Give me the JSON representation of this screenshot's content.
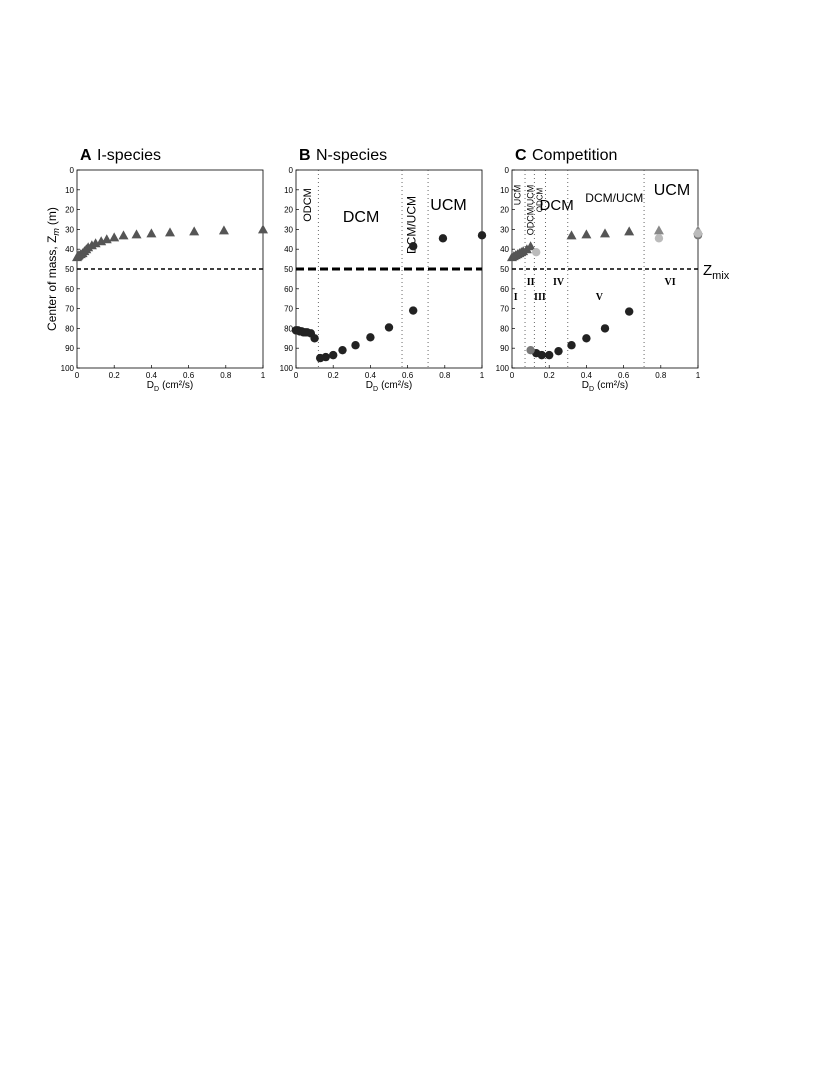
{
  "chart_data": [
    {
      "type": "scatter",
      "panel": "A",
      "title": "I-species",
      "ylabel": "Center of mass, Z",
      "ylabel_sub": "m",
      "ylabel_unit": "(m)",
      "xlabel": "D",
      "xlabel_sub": "D",
      "xlabel_unit": "(cm²/s)",
      "xlim": [
        0,
        1
      ],
      "xticks": [
        0,
        0.2,
        0.4,
        0.6,
        0.8,
        1
      ],
      "ylim": [
        100,
        0
      ],
      "yticks": [
        0,
        10,
        20,
        30,
        40,
        50,
        60,
        70,
        80,
        90,
        100
      ],
      "y_inverted": true,
      "hline": 50,
      "hline_bold": false,
      "vlines": [],
      "series": [
        {
          "marker": "triangle",
          "color": "#555555",
          "x": [
            0,
            0.005,
            0.01,
            0.02,
            0.03,
            0.04,
            0.05,
            0.06,
            0.08,
            0.1,
            0.13,
            0.16,
            0.2,
            0.25,
            0.32,
            0.4,
            0.5,
            0.63,
            0.79,
            1
          ],
          "values": [
            44,
            43.5,
            43,
            42.5,
            42,
            41,
            40,
            39,
            38,
            37,
            36,
            35,
            34,
            33,
            32.5,
            32,
            31.5,
            31,
            30.5,
            30
          ]
        }
      ],
      "annotations": []
    },
    {
      "type": "scatter",
      "panel": "B",
      "title": "N-species",
      "xlabel": "D",
      "xlabel_sub": "D",
      "xlabel_unit": "(cm²/s)",
      "xlim": [
        0,
        1
      ],
      "xticks": [
        0,
        0.2,
        0.4,
        0.6,
        0.8,
        1
      ],
      "ylim": [
        100,
        0
      ],
      "yticks": [
        0,
        10,
        20,
        30,
        40,
        50,
        60,
        70,
        80,
        90,
        100
      ],
      "y_inverted": true,
      "hline": 50,
      "hline_bold": true,
      "vlines": [
        0.12,
        0.57,
        0.71
      ],
      "series": [
        {
          "marker": "circle",
          "color": "#222222",
          "x": [
            0,
            0.01,
            0.02,
            0.03,
            0.04,
            0.05,
            0.06,
            0.08,
            0.1,
            0.13,
            0.16,
            0.2,
            0.25,
            0.32,
            0.4,
            0.5,
            0.63,
            0.63,
            0.79,
            1
          ],
          "values": [
            81,
            81,
            81.5,
            81.5,
            82,
            82,
            82,
            82.5,
            85,
            95,
            94.5,
            93.5,
            91,
            88.5,
            84.5,
            79.5,
            71,
            38.5,
            34.5,
            33
          ]
        }
      ],
      "annotations": [
        "ODCM",
        "DCM",
        "DCM/UCM",
        "UCM"
      ]
    },
    {
      "type": "scatter",
      "panel": "C",
      "title": "Competition",
      "xlabel": "D",
      "xlabel_sub": "D",
      "xlabel_unit": "(cm²/s)",
      "xlim": [
        0,
        1
      ],
      "xticks": [
        0,
        0.2,
        0.4,
        0.6,
        0.8,
        1
      ],
      "ylim": [
        100,
        0
      ],
      "yticks": [
        0,
        10,
        20,
        30,
        40,
        50,
        60,
        70,
        80,
        90,
        100
      ],
      "y_inverted": true,
      "hline": 50,
      "hline_bold": false,
      "vlines": [
        0.07,
        0.12,
        0.18,
        0.3,
        0.71
      ],
      "hline_label": "Z",
      "hline_label_sub": "mix",
      "series": [
        {
          "marker": "triangle",
          "color": "#555555",
          "x": [
            0,
            0.01,
            0.02,
            0.03,
            0.04,
            0.05,
            0.06,
            0.08,
            0.1,
            0.32,
            0.4,
            0.5,
            0.63
          ],
          "values": [
            44,
            43.5,
            43,
            42.5,
            42,
            41.5,
            41,
            40,
            38.5,
            33,
            32.5,
            32,
            31
          ]
        },
        {
          "marker": "triangle",
          "color": "#888888",
          "x": [
            0.79,
            1
          ],
          "values": [
            30.5,
            30.5
          ]
        },
        {
          "marker": "circle",
          "color": "#222222",
          "x": [
            0.13,
            0.16,
            0.2,
            0.25,
            0.32,
            0.4,
            0.5,
            0.63
          ],
          "values": [
            92.5,
            93.5,
            93.5,
            91.5,
            88.5,
            85,
            80,
            71.5
          ]
        },
        {
          "marker": "circle",
          "color": "#777777",
          "x": [
            0.1,
            1
          ],
          "values": [
            91,
            33
          ]
        },
        {
          "marker": "circle",
          "color": "#bbbbbb",
          "x": [
            0.13,
            0.79,
            1
          ],
          "values": [
            41.5,
            34.5,
            32
          ]
        }
      ],
      "annotations": [
        "UCM",
        "ODCM/UCM",
        "ODCM",
        "DCM",
        "DCM/UCM",
        "UCM"
      ],
      "regions": [
        "I",
        "II",
        "III",
        "IV",
        "V",
        "VI"
      ]
    }
  ]
}
